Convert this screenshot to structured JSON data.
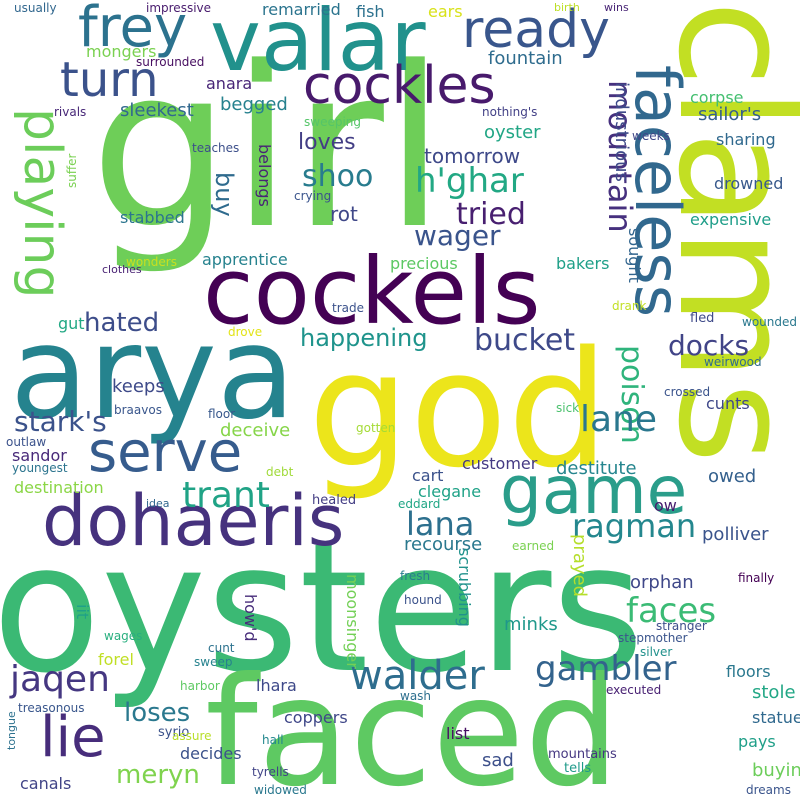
{
  "word_cloud": {
    "words": [
      {
        "text": "oysters",
        "color": "#3bb974"
      },
      {
        "text": "faced",
        "color": "#5ec962"
      },
      {
        "text": "girl",
        "color": "#6ece58"
      },
      {
        "text": "god",
        "color": "#ece51b"
      },
      {
        "text": "clams",
        "color": "#c2df23"
      },
      {
        "text": "arya",
        "color": "#25838e"
      },
      {
        "text": "cockels",
        "color": "#440154"
      },
      {
        "text": "valar",
        "color": "#21918c"
      },
      {
        "text": "dohaeris",
        "color": "#46327e"
      },
      {
        "text": "faceless",
        "color": "#31688e"
      },
      {
        "text": "game",
        "color": "#2a9d8a"
      },
      {
        "text": "serve",
        "color": "#365c8d"
      },
      {
        "text": "cockles",
        "color": "#481a6c"
      },
      {
        "text": "ready",
        "color": "#39568c"
      },
      {
        "text": "frey",
        "color": "#2c728e"
      },
      {
        "text": "turn",
        "color": "#3b528b"
      },
      {
        "text": "playing",
        "color": "#6ccd5a"
      },
      {
        "text": "lie",
        "color": "#472d7b"
      },
      {
        "text": "walder",
        "color": "#2e6d8e"
      },
      {
        "text": "mountain",
        "color": "#46307e"
      },
      {
        "text": "h'ghar",
        "color": "#22a884"
      },
      {
        "text": "poison",
        "color": "#2fb47c"
      },
      {
        "text": "trant",
        "color": "#20a386"
      },
      {
        "text": "lana",
        "color": "#2d708e"
      },
      {
        "text": "ragman",
        "color": "#24878e"
      },
      {
        "text": "gambler",
        "color": "#33638d"
      },
      {
        "text": "jaqen",
        "color": "#453781"
      },
      {
        "text": "lane",
        "color": "#2a778e"
      },
      {
        "text": "faces",
        "color": "#3bbb75"
      },
      {
        "text": "stark's",
        "color": "#3b528b"
      },
      {
        "text": "tried",
        "color": "#481f70"
      },
      {
        "text": "shoo",
        "color": "#287c8e"
      },
      {
        "text": "wager",
        "color": "#3a548c"
      },
      {
        "text": "bucket",
        "color": "#3e4989"
      },
      {
        "text": "docks",
        "color": "#414487"
      },
      {
        "text": "meryn",
        "color": "#7fd34e"
      },
      {
        "text": "loses",
        "color": "#2a788e"
      },
      {
        "text": "hated",
        "color": "#3d4d8a"
      },
      {
        "text": "happening",
        "color": "#1f948c"
      },
      {
        "text": "fountain",
        "color": "#2f6c8e"
      },
      {
        "text": "industrious",
        "color": "#3e4a89"
      },
      {
        "text": "tomorrow",
        "color": "#3e4989"
      },
      {
        "text": "loves",
        "color": "#433e85"
      },
      {
        "text": "buy",
        "color": "#2f6b8e"
      },
      {
        "text": "rot",
        "color": "#3f4788"
      },
      {
        "text": "oyster",
        "color": "#21a685"
      },
      {
        "text": "sailor's",
        "color": "#355f8d"
      },
      {
        "text": "mongers",
        "color": "#7ad151"
      },
      {
        "text": "begged",
        "color": "#26818e"
      },
      {
        "text": "remarried",
        "color": "#2b748e"
      },
      {
        "text": "fish",
        "color": "#2c718e"
      },
      {
        "text": "ears",
        "color": "#d8e219"
      },
      {
        "text": "anara",
        "color": "#482677"
      },
      {
        "text": "sleekest",
        "color": "#31688e"
      },
      {
        "text": "corpse",
        "color": "#44bf70"
      },
      {
        "text": "sharing",
        "color": "#30698e"
      },
      {
        "text": "drowned",
        "color": "#38598c"
      },
      {
        "text": "expensive",
        "color": "#1f9e89"
      },
      {
        "text": "sought",
        "color": "#32658e"
      },
      {
        "text": "belongs",
        "color": "#482475"
      },
      {
        "text": "stabbed",
        "color": "#2b758e"
      },
      {
        "text": "apprentice",
        "color": "#26828e"
      },
      {
        "text": "precious",
        "color": "#5cc863"
      },
      {
        "text": "bakers",
        "color": "#1fa088"
      },
      {
        "text": "gut",
        "color": "#22a884"
      },
      {
        "text": "keeps",
        "color": "#3e4a89"
      },
      {
        "text": "cunts",
        "color": "#3f4889"
      },
      {
        "text": "deceive",
        "color": "#86d549"
      },
      {
        "text": "sandor",
        "color": "#482979"
      },
      {
        "text": "destination",
        "color": "#8bd646"
      },
      {
        "text": "customer",
        "color": "#443983"
      },
      {
        "text": "destitute",
        "color": "#25858e"
      },
      {
        "text": "clegane",
        "color": "#1fa287"
      },
      {
        "text": "recourse",
        "color": "#2a788e"
      },
      {
        "text": "cart",
        "color": "#3b528b"
      },
      {
        "text": "polliver",
        "color": "#3a548c"
      },
      {
        "text": "owed",
        "color": "#34608d"
      },
      {
        "text": "prayed",
        "color": "#b5de2b"
      },
      {
        "text": "scrubbing",
        "color": "#20928c"
      },
      {
        "text": "orphan",
        "color": "#3f4889"
      },
      {
        "text": "moonsinger",
        "color": "#73d056"
      },
      {
        "text": "minks",
        "color": "#1f988b"
      },
      {
        "text": "how'd",
        "color": "#472c7a"
      },
      {
        "text": "iit",
        "color": "#1fa188"
      },
      {
        "text": "forel",
        "color": "#c0df25"
      },
      {
        "text": "lhara",
        "color": "#3e4989"
      },
      {
        "text": "stole",
        "color": "#22a785"
      },
      {
        "text": "floors",
        "color": "#2a788e"
      },
      {
        "text": "coppers",
        "color": "#3f4788"
      },
      {
        "text": "statue",
        "color": "#30698e"
      },
      {
        "text": "pays",
        "color": "#1f9f88"
      },
      {
        "text": "decides",
        "color": "#3b528b"
      },
      {
        "text": "list",
        "color": "#471063"
      },
      {
        "text": "sad",
        "color": "#3c4f8a"
      },
      {
        "text": "buying",
        "color": "#6ccd5a"
      },
      {
        "text": "canals",
        "color": "#414487"
      },
      {
        "text": "mountains",
        "color": "#453781"
      },
      {
        "text": "tells",
        "color": "#1f9a8a"
      },
      {
        "text": "usually",
        "color": "#31678e"
      },
      {
        "text": "impressive",
        "color": "#481b6d"
      },
      {
        "text": "surrounded",
        "color": "#470e61"
      },
      {
        "text": "rivals",
        "color": "#482878"
      },
      {
        "text": "sweeping",
        "color": "#54c568"
      },
      {
        "text": "nothing's",
        "color": "#424086"
      },
      {
        "text": "weeks",
        "color": "#3f4788"
      },
      {
        "text": "suffer",
        "color": "#7ad151"
      },
      {
        "text": "teaches",
        "color": "#3c4f8a"
      },
      {
        "text": "crying",
        "color": "#3a548c"
      },
      {
        "text": "wonders",
        "color": "#c8e020"
      },
      {
        "text": "clothes",
        "color": "#482173"
      },
      {
        "text": "trade",
        "color": "#3b528b"
      },
      {
        "text": "drove",
        "color": "#e2e418"
      },
      {
        "text": "drank",
        "color": "#c2df23"
      },
      {
        "text": "wounded",
        "color": "#2a788e"
      },
      {
        "text": "fled",
        "color": "#3e4a89"
      },
      {
        "text": "weirwood",
        "color": "#2f6b8e"
      },
      {
        "text": "crossed",
        "color": "#3a538b"
      },
      {
        "text": "braavos",
        "color": "#39568c"
      },
      {
        "text": "outlaw",
        "color": "#3b528b"
      },
      {
        "text": "youngest",
        "color": "#2b748e"
      },
      {
        "text": "floor",
        "color": "#38588c"
      },
      {
        "text": "gotten",
        "color": "#a5db36"
      },
      {
        "text": "sick",
        "color": "#4ac16d"
      },
      {
        "text": "debt",
        "color": "#a0da39"
      },
      {
        "text": "idea",
        "color": "#31678e"
      },
      {
        "text": "healed",
        "color": "#433d84"
      },
      {
        "text": "eddard",
        "color": "#21a685"
      },
      {
        "text": "ow",
        "color": "#481d6f"
      },
      {
        "text": "earned",
        "color": "#7ad151"
      },
      {
        "text": "fresh",
        "color": "#287d8e"
      },
      {
        "text": "hound",
        "color": "#3b528b"
      },
      {
        "text": "stranger",
        "color": "#3d4e8a"
      },
      {
        "text": "finally",
        "color": "#440154"
      },
      {
        "text": "wages",
        "color": "#29af7f"
      },
      {
        "text": "cunt",
        "color": "#2c728e"
      },
      {
        "text": "sweep",
        "color": "#26828e"
      },
      {
        "text": "stepmother",
        "color": "#3a548c"
      },
      {
        "text": "silver",
        "color": "#21918c"
      },
      {
        "text": "harbor",
        "color": "#5ec962"
      },
      {
        "text": "wash",
        "color": "#2e6f8e"
      },
      {
        "text": "executed",
        "color": "#482173"
      },
      {
        "text": "treasonous",
        "color": "#39568c"
      },
      {
        "text": "syrio",
        "color": "#3b528b"
      },
      {
        "text": "assure",
        "color": "#b8de29"
      },
      {
        "text": "hall",
        "color": "#23888e"
      },
      {
        "text": "tongue",
        "color": "#2c718e"
      },
      {
        "text": "tyrells",
        "color": "#414487"
      },
      {
        "text": "widowed",
        "color": "#2a788e"
      },
      {
        "text": "dreams",
        "color": "#3a548c"
      },
      {
        "text": "birth",
        "color": "#bddf26"
      },
      {
        "text": "wins",
        "color": "#482475"
      }
    ]
  }
}
